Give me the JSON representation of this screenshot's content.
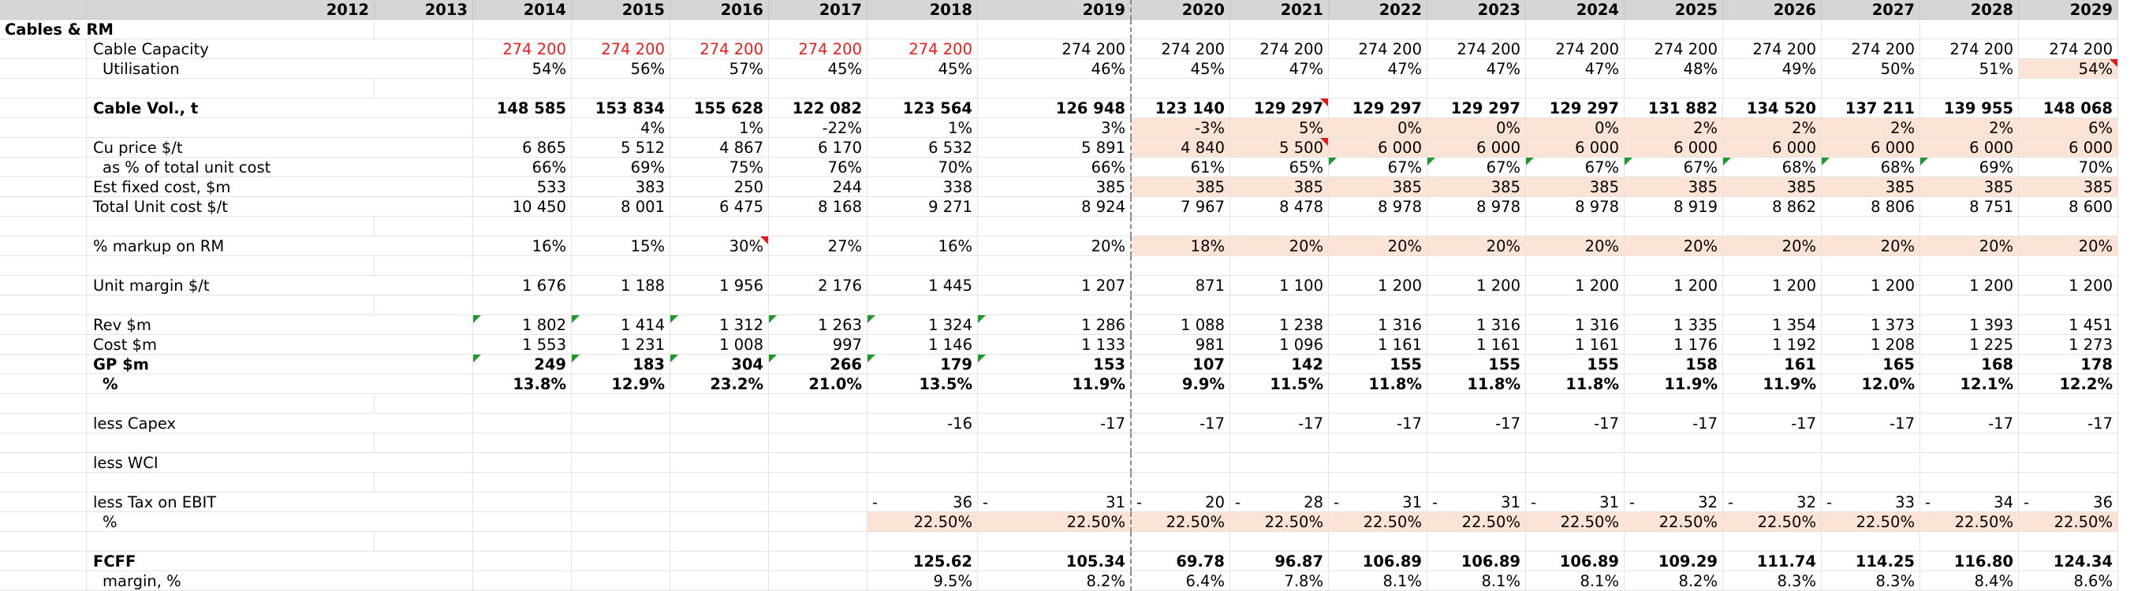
{
  "years": [
    "2012",
    "2013",
    "2014",
    "2015",
    "2016",
    "2017",
    "2018",
    "2019",
    "2020",
    "2021",
    "2022",
    "2023",
    "2024",
    "2025",
    "2026",
    "2027",
    "2028",
    "2029"
  ],
  "section_title": "Cables & RM",
  "rows": {
    "cable_capacity": {
      "label": "Cable Capacity",
      "values": [
        "",
        "",
        "274 200",
        "274 200",
        "274 200",
        "274 200",
        "274 200",
        "274 200",
        "274 200",
        "274 200",
        "274 200",
        "274 200",
        "274 200",
        "274 200",
        "274 200",
        "274 200",
        "274 200",
        "274 200"
      ]
    },
    "utilisation": {
      "label": "Utilisation",
      "values": [
        "",
        "",
        "54%",
        "56%",
        "57%",
        "45%",
        "45%",
        "46%",
        "45%",
        "47%",
        "47%",
        "47%",
        "47%",
        "48%",
        "49%",
        "50%",
        "51%",
        "54%"
      ]
    },
    "cable_vol": {
      "label": "Cable Vol., t",
      "values": [
        "",
        "",
        "148 585",
        "153 834",
        "155 628",
        "122 082",
        "123 564",
        "126 948",
        "123 140",
        "129 297",
        "129 297",
        "129 297",
        "129 297",
        "131 882",
        "134 520",
        "137 211",
        "139 955",
        "148 068"
      ]
    },
    "vol_growth": {
      "label": "",
      "values": [
        "",
        "",
        "",
        "4%",
        "1%",
        "-22%",
        "1%",
        "3%",
        "-3%",
        "5%",
        "0%",
        "0%",
        "0%",
        "2%",
        "2%",
        "2%",
        "2%",
        "6%"
      ]
    },
    "cu_price": {
      "label": "Cu price $/t",
      "values": [
        "",
        "",
        "6 865",
        "5 512",
        "4 867",
        "6 170",
        "6 532",
        "5 891",
        "4 840",
        "5 500",
        "6 000",
        "6 000",
        "6 000",
        "6 000",
        "6 000",
        "6 000",
        "6 000",
        "6 000"
      ]
    },
    "pct_unit_cost": {
      "label": "as % of total unit cost",
      "values": [
        "",
        "",
        "66%",
        "69%",
        "75%",
        "76%",
        "70%",
        "66%",
        "61%",
        "65%",
        "67%",
        "67%",
        "67%",
        "67%",
        "68%",
        "68%",
        "69%",
        "70%"
      ]
    },
    "fixed_cost": {
      "label": "Est fixed cost, $m",
      "values": [
        "",
        "",
        "533",
        "383",
        "250",
        "244",
        "338",
        "385",
        "385",
        "385",
        "385",
        "385",
        "385",
        "385",
        "385",
        "385",
        "385",
        "385"
      ]
    },
    "total_unit_cost": {
      "label": "Total Unit cost $/t",
      "values": [
        "",
        "",
        "10 450",
        "8 001",
        "6 475",
        "8 168",
        "9 271",
        "8 924",
        "7 967",
        "8 478",
        "8 978",
        "8 978",
        "8 978",
        "8 919",
        "8 862",
        "8 806",
        "8 751",
        "8 600"
      ]
    },
    "markup": {
      "label": "% markup on RM",
      "values": [
        "",
        "",
        "16%",
        "15%",
        "30%",
        "27%",
        "16%",
        "20%",
        "18%",
        "20%",
        "20%",
        "20%",
        "20%",
        "20%",
        "20%",
        "20%",
        "20%",
        "20%"
      ]
    },
    "unit_margin": {
      "label": "Unit margin $/t",
      "values": [
        "",
        "",
        "1 676",
        "1 188",
        "1 956",
        "2 176",
        "1 445",
        "1 207",
        "871",
        "1 100",
        "1 200",
        "1 200",
        "1 200",
        "1 200",
        "1 200",
        "1 200",
        "1 200",
        "1 200"
      ]
    },
    "rev": {
      "label": "Rev $m",
      "values": [
        "",
        "",
        "1 802",
        "1 414",
        "1 312",
        "1 263",
        "1 324",
        "1 286",
        "1 088",
        "1 238",
        "1 316",
        "1 316",
        "1 316",
        "1 335",
        "1 354",
        "1 373",
        "1 393",
        "1 451"
      ]
    },
    "cost": {
      "label": "Cost $m",
      "values": [
        "",
        "",
        "1 553",
        "1 231",
        "1 008",
        "997",
        "1 146",
        "1 133",
        "981",
        "1 096",
        "1 161",
        "1 161",
        "1 161",
        "1 176",
        "1 192",
        "1 208",
        "1 225",
        "1 273"
      ]
    },
    "gp": {
      "label": "GP $m",
      "values": [
        "",
        "",
        "249",
        "183",
        "304",
        "266",
        "179",
        "153",
        "107",
        "142",
        "155",
        "155",
        "155",
        "158",
        "161",
        "165",
        "168",
        "178"
      ]
    },
    "gp_pct": {
      "label": "%",
      "values": [
        "",
        "",
        "13.8%",
        "12.9%",
        "23.2%",
        "21.0%",
        "13.5%",
        "11.9%",
        "9.9%",
        "11.5%",
        "11.8%",
        "11.8%",
        "11.8%",
        "11.9%",
        "11.9%",
        "12.0%",
        "12.1%",
        "12.2%"
      ]
    },
    "capex": {
      "label": "less Capex",
      "values": [
        "",
        "",
        "",
        "",
        "",
        "",
        "-16",
        "-17",
        "-17",
        "-17",
        "-17",
        "-17",
        "-17",
        "-17",
        "-17",
        "-17",
        "-17",
        "-17"
      ]
    },
    "wci": {
      "label": "less WCI",
      "values": [
        "",
        "",
        "",
        "",
        "",
        "",
        "",
        "",
        "",
        "",
        "",
        "",
        "",
        "",
        "",
        "",
        "",
        ""
      ]
    },
    "tax": {
      "label": "less Tax on EBIT",
      "values": [
        "",
        "",
        "",
        "",
        "",
        "",
        "36",
        "31",
        "20",
        "28",
        "31",
        "31",
        "31",
        "32",
        "32",
        "33",
        "34",
        "36"
      ]
    },
    "tax_pct": {
      "label": "%",
      "values": [
        "",
        "",
        "",
        "",
        "",
        "",
        "22.50%",
        "22.50%",
        "22.50%",
        "22.50%",
        "22.50%",
        "22.50%",
        "22.50%",
        "22.50%",
        "22.50%",
        "22.50%",
        "22.50%",
        "22.50%"
      ]
    },
    "fcff": {
      "label": "FCFF",
      "values": [
        "",
        "",
        "",
        "",
        "",
        "",
        "125.62",
        "105.34",
        "69.78",
        "96.87",
        "106.89",
        "106.89",
        "106.89",
        "109.29",
        "111.74",
        "114.25",
        "116.80",
        "124.34"
      ]
    },
    "fcff_margin": {
      "label": "margin, %",
      "values": [
        "",
        "",
        "",
        "",
        "",
        "",
        "9.5%",
        "8.2%",
        "6.4%",
        "7.8%",
        "8.1%",
        "8.1%",
        "8.1%",
        "8.2%",
        "8.3%",
        "8.3%",
        "8.4%",
        "8.6%"
      ]
    }
  },
  "tax_prefix": "-",
  "colors": {
    "header_bg": "#d6d6d6",
    "input_fill": "#fbe4d5",
    "red_text": "#ee1b1b",
    "comment_green": "#1f9a2a",
    "comment_red": "#e11b1b"
  }
}
